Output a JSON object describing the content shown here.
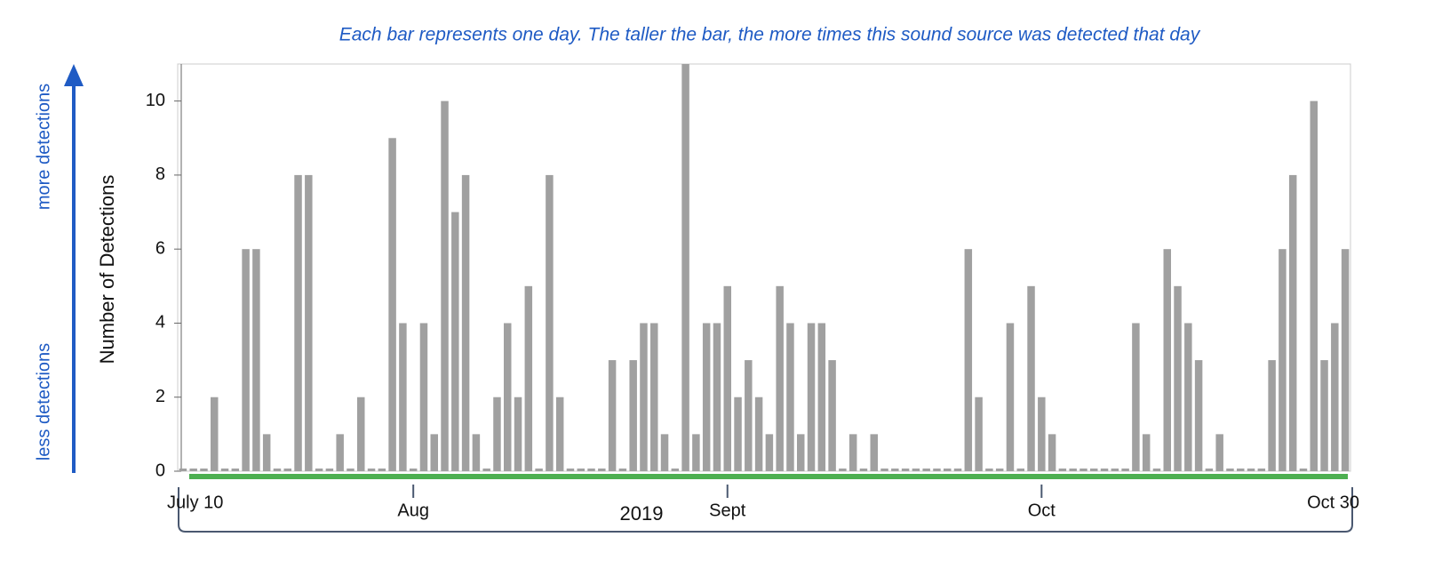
{
  "chart_data": {
    "type": "bar",
    "annotation": "Each bar represents one day. The taller the bar, the more times this sound source was detected that day",
    "y_label": "Number of Detections",
    "x_label": "2019",
    "arrow_top_label": "more detections",
    "arrow_bottom_label": "less detections",
    "color": "#a0a0a0",
    "categories": [
      "July 10",
      null,
      null,
      null,
      null,
      null,
      null,
      null,
      null,
      null,
      null,
      null,
      null,
      null,
      null,
      null,
      null,
      null,
      null,
      null,
      null,
      null,
      "Aug",
      null,
      null,
      null,
      null,
      null,
      null,
      null,
      null,
      null,
      null,
      null,
      null,
      null,
      null,
      null,
      null,
      null,
      null,
      null,
      null,
      null,
      null,
      null,
      null,
      null,
      null,
      null,
      null,
      null,
      "Sept",
      null,
      null,
      null,
      null,
      null,
      null,
      null,
      null,
      null,
      null,
      null,
      null,
      null,
      null,
      null,
      null,
      null,
      null,
      null,
      null,
      null,
      null,
      null,
      null,
      null,
      null,
      null,
      null,
      null,
      "Oct",
      null,
      null,
      null,
      null,
      null,
      null,
      null,
      null,
      null,
      null,
      null,
      null,
      null,
      null,
      null,
      null,
      null,
      null,
      null,
      null,
      null,
      null,
      null,
      null,
      null,
      null,
      null,
      null,
      "Oct 30"
    ],
    "values": [
      0,
      0,
      0,
      2,
      0,
      0,
      6,
      6,
      1,
      0,
      0,
      8,
      8,
      0,
      0,
      1,
      0,
      2,
      0,
      0,
      9,
      4,
      0,
      4,
      1,
      10,
      7,
      8,
      1,
      0,
      2,
      4,
      2,
      5,
      0,
      8,
      2,
      0,
      0,
      0,
      0,
      3,
      0,
      3,
      4,
      4,
      1,
      0,
      11,
      1,
      4,
      4,
      5,
      2,
      3,
      2,
      1,
      5,
      4,
      1,
      4,
      4,
      3,
      0,
      1,
      0,
      1,
      0,
      0,
      0,
      0,
      0,
      0,
      0,
      0,
      6,
      2,
      0,
      0,
      4,
      0,
      5,
      2,
      1,
      0,
      0,
      0,
      0,
      0,
      0,
      0,
      4,
      1,
      0,
      6,
      5,
      4,
      3,
      0,
      1,
      0,
      0,
      0,
      0,
      3,
      6,
      8,
      0,
      10,
      3,
      4,
      6
    ],
    "ylim": [
      0,
      11
    ],
    "yticks": [
      0,
      2,
      4,
      6,
      8,
      10
    ],
    "grid": false
  }
}
